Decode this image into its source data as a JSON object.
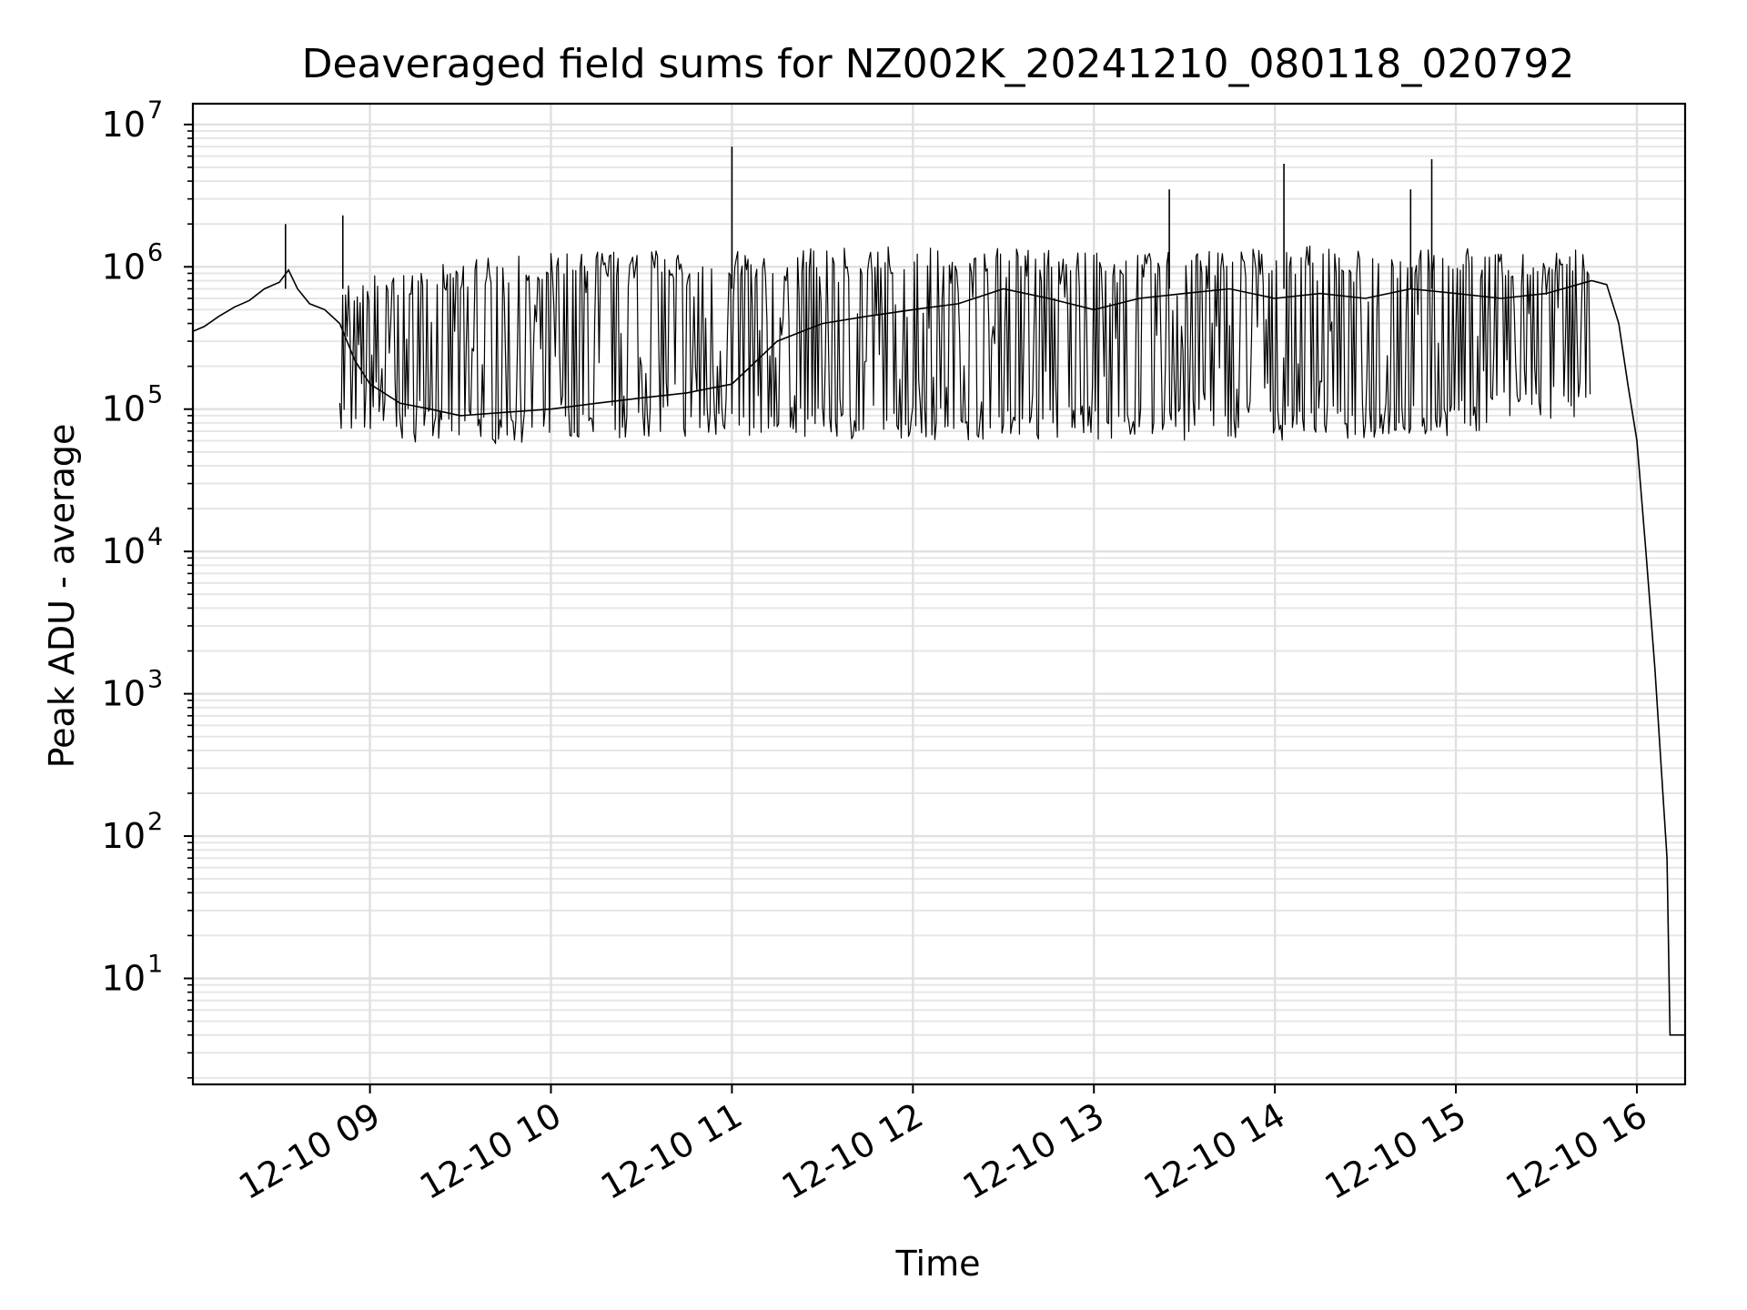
{
  "chart_data": {
    "type": "line",
    "title": "Deaveraged field sums for NZ002K_20241210_080118_020792",
    "xlabel": "Time",
    "ylabel": "Peak ADU - average",
    "y_scale": "log",
    "ylim": [
      1.8,
      14000000
    ],
    "xlim": [
      "2024-12-10 08:01:18",
      "2024-12-10 16:16:00"
    ],
    "grid": true,
    "line_color": "#000000",
    "x_ticks": [
      "2024-12-10 09:00",
      "2024-12-10 10:00",
      "2024-12-10 11:00",
      "2024-12-10 12:00",
      "2024-12-10 13:00",
      "2024-12-10 14:00",
      "2024-12-10 15:00",
      "2024-12-10 16:00"
    ],
    "x_tick_labels": [
      "12-10 09",
      "12-10 10",
      "12-10 11",
      "12-10 12",
      "12-10 13",
      "12-10 14",
      "12-10 15",
      "12-10 16"
    ],
    "y_ticks": [
      {
        "value": 10,
        "base": "10",
        "exponent": "1"
      },
      {
        "value": 100,
        "base": "10",
        "exponent": "2"
      },
      {
        "value": 1000,
        "base": "10",
        "exponent": "3"
      },
      {
        "value": 10000,
        "base": "10",
        "exponent": "4"
      },
      {
        "value": 100000,
        "base": "10",
        "exponent": "5"
      },
      {
        "value": 1000000,
        "base": "10",
        "exponent": "6"
      },
      {
        "value": 10000000,
        "base": "10",
        "exponent": "7"
      }
    ],
    "series": [
      {
        "points": [
          [
            "2024-12-10 08:01",
            350000
          ],
          [
            "2024-12-10 08:05",
            380000
          ],
          [
            "2024-12-10 08:10",
            450000
          ],
          [
            "2024-12-10 08:15",
            520000
          ],
          [
            "2024-12-10 08:20",
            580000
          ],
          [
            "2024-12-10 08:25",
            700000
          ],
          [
            "2024-12-10 08:30",
            780000
          ],
          [
            "2024-12-10 08:33",
            950000
          ],
          [
            "2024-12-10 08:36",
            700000
          ],
          [
            "2024-12-10 08:40",
            550000
          ],
          [
            "2024-12-10 08:45",
            500000
          ],
          [
            "2024-12-10 08:50",
            400000
          ],
          [
            "2024-12-10 08:55",
            220000
          ],
          [
            "2024-12-10 09:00",
            150000
          ],
          [
            "2024-12-10 09:10",
            110000
          ],
          [
            "2024-12-10 09:20",
            100000
          ],
          [
            "2024-12-10 09:30",
            90000
          ],
          [
            "2024-12-10 09:45",
            95000
          ],
          [
            "2024-12-10 10:00",
            100000
          ],
          [
            "2024-12-10 10:15",
            110000
          ],
          [
            "2024-12-10 10:30",
            120000
          ],
          [
            "2024-12-10 10:45",
            130000
          ],
          [
            "2024-12-10 11:00",
            150000
          ],
          [
            "2024-12-10 11:15",
            300000
          ],
          [
            "2024-12-10 11:30",
            400000
          ],
          [
            "2024-12-10 11:45",
            450000
          ],
          [
            "2024-12-10 12:00",
            500000
          ],
          [
            "2024-12-10 12:15",
            550000
          ],
          [
            "2024-12-10 12:30",
            700000
          ],
          [
            "2024-12-10 12:45",
            600000
          ],
          [
            "2024-12-10 13:00",
            500000
          ],
          [
            "2024-12-10 13:15",
            600000
          ],
          [
            "2024-12-10 13:30",
            650000
          ],
          [
            "2024-12-10 13:45",
            700000
          ],
          [
            "2024-12-10 14:00",
            600000
          ],
          [
            "2024-12-10 14:15",
            650000
          ],
          [
            "2024-12-10 14:30",
            600000
          ],
          [
            "2024-12-10 14:45",
            700000
          ],
          [
            "2024-12-10 15:00",
            650000
          ],
          [
            "2024-12-10 15:15",
            600000
          ],
          [
            "2024-12-10 15:30",
            650000
          ],
          [
            "2024-12-10 15:45",
            800000
          ],
          [
            "2024-12-10 15:50",
            750000
          ],
          [
            "2024-12-10 15:54",
            400000
          ],
          [
            "2024-12-10 15:57",
            150000
          ],
          [
            "2024-12-10 16:00",
            60000
          ],
          [
            "2024-12-10 16:03",
            10000
          ],
          [
            "2024-12-10 16:06",
            1500
          ],
          [
            "2024-12-10 16:09",
            150
          ],
          [
            "2024-12-10 16:10",
            70
          ],
          [
            "2024-12-10 16:11",
            4
          ],
          [
            "2024-12-10 16:16",
            4
          ]
        ],
        "spikes": [
          [
            "2024-12-10 08:32",
            2000000
          ],
          [
            "2024-12-10 08:51",
            2300000
          ],
          [
            "2024-12-10 11:00",
            7000000
          ],
          [
            "2024-12-10 13:25",
            3500000
          ],
          [
            "2024-12-10 14:03",
            5300000
          ],
          [
            "2024-12-10 14:45",
            3500000
          ],
          [
            "2024-12-10 14:52",
            5700000
          ]
        ],
        "band": [
          [
            "2024-12-10 08:50",
            65000,
            800000
          ],
          [
            "2024-12-10 09:30",
            55000,
            1100000
          ],
          [
            "2024-12-10 10:00",
            60000,
            1300000
          ],
          [
            "2024-12-10 11:00",
            65000,
            1300000
          ],
          [
            "2024-12-10 12:00",
            60000,
            1400000
          ],
          [
            "2024-12-10 13:00",
            60000,
            1300000
          ],
          [
            "2024-12-10 14:00",
            60000,
            1400000
          ],
          [
            "2024-12-10 15:00",
            65000,
            1400000
          ],
          [
            "2024-12-10 15:45",
            90000,
            1300000
          ]
        ]
      }
    ]
  }
}
